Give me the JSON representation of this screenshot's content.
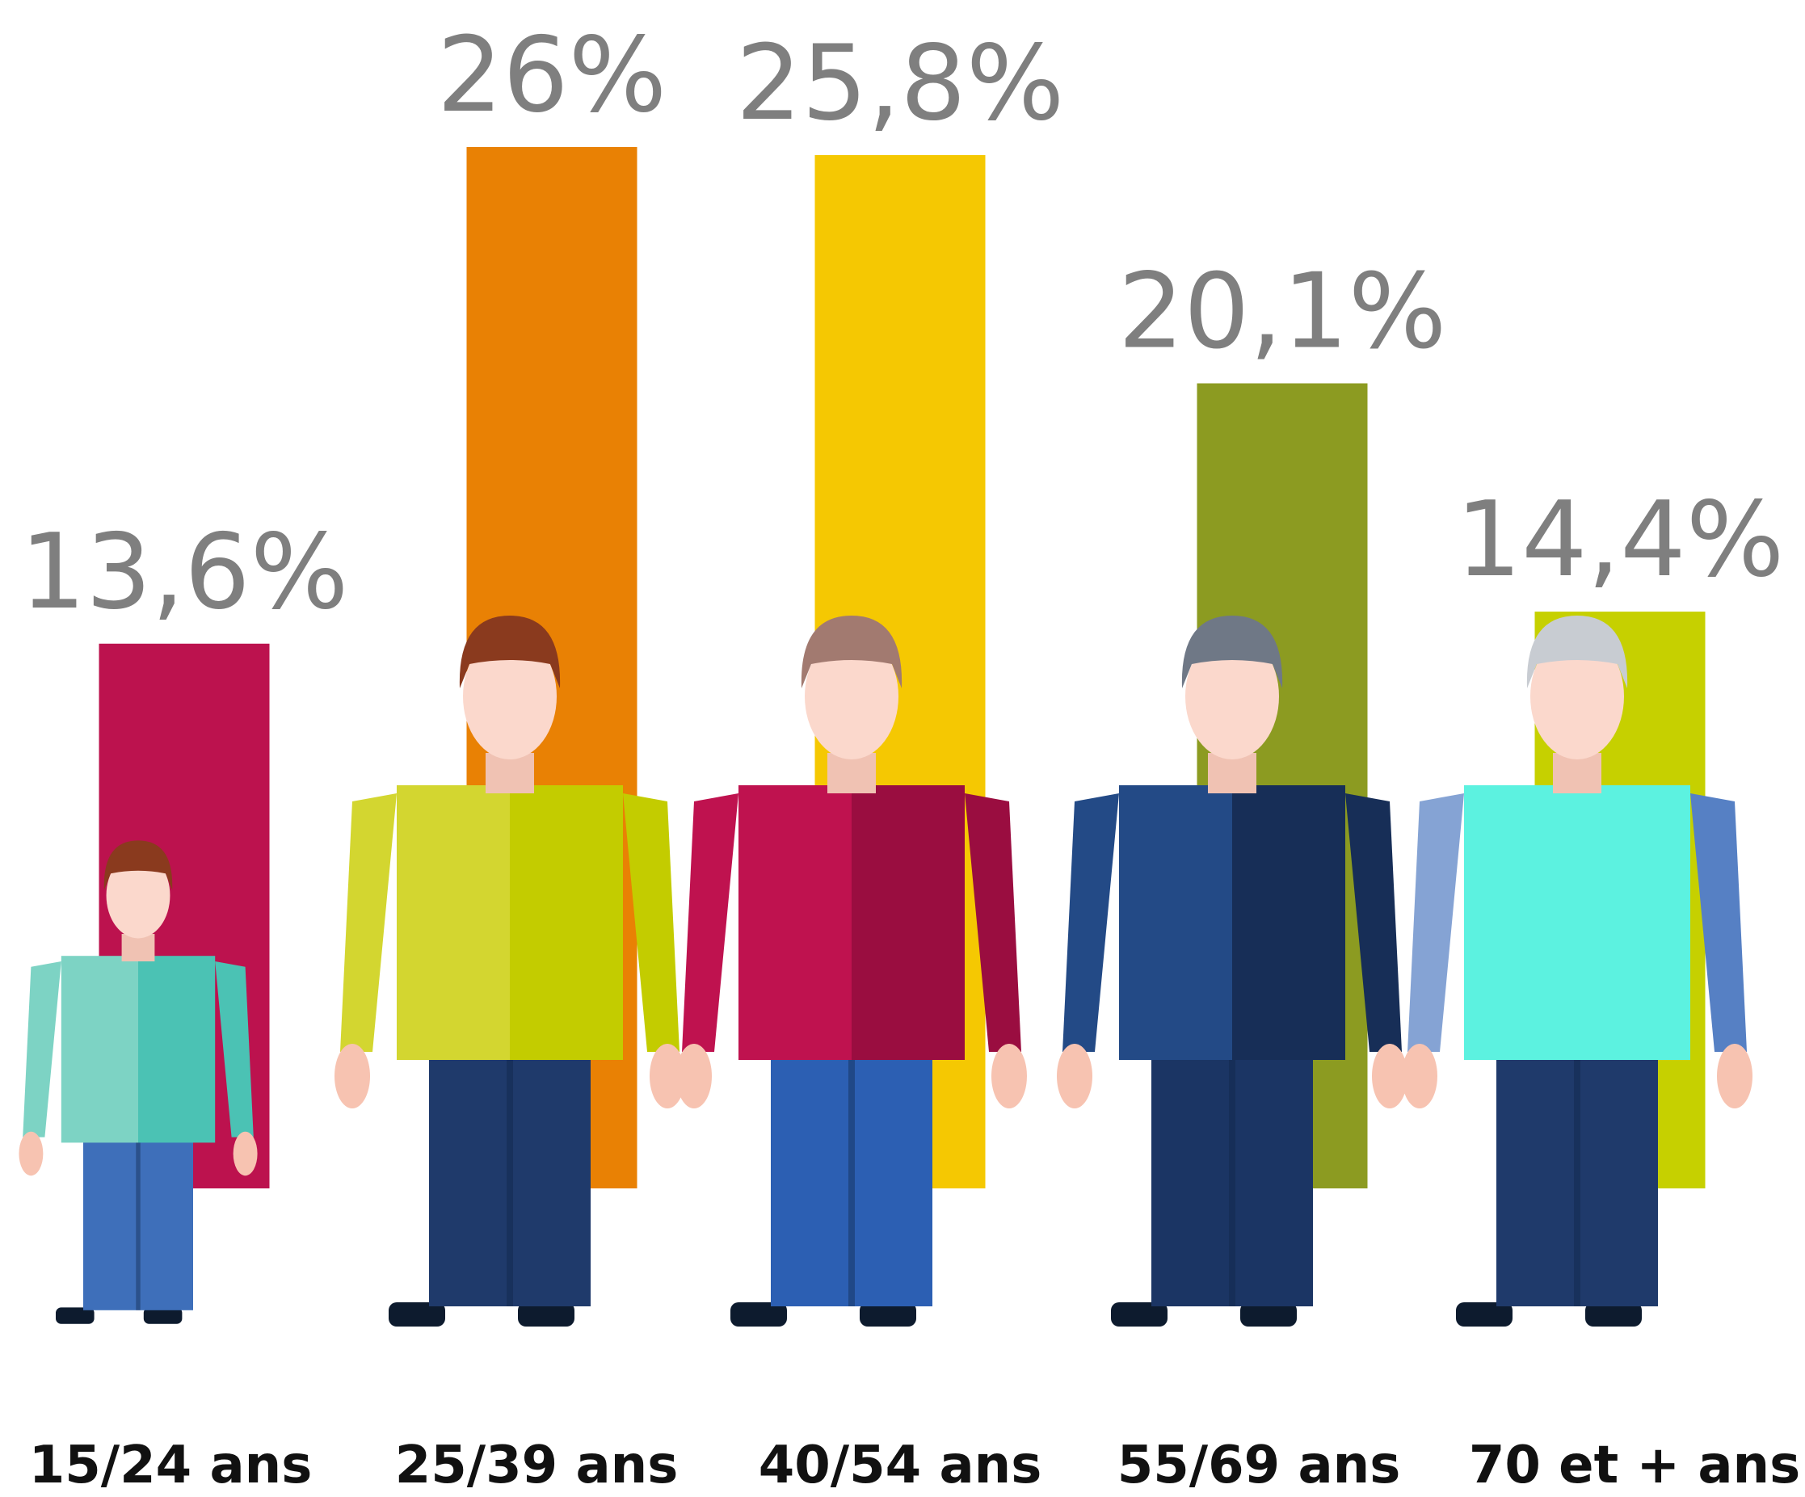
{
  "chart_data": {
    "type": "bar",
    "categories": [
      "15/24 ans",
      "25/39 ans",
      "40/54 ans",
      "55/69 ans",
      "70 et + ans"
    ],
    "values": [
      13.6,
      26,
      25.8,
      20.1,
      14.4
    ],
    "value_labels": [
      "13,6%",
      "26%",
      "25,8%",
      "20,1%",
      "14,4%"
    ],
    "colors": [
      "#bc124e",
      "#e98104",
      "#f5c802",
      "#8c9b21",
      "#c6d000"
    ]
  }
}
